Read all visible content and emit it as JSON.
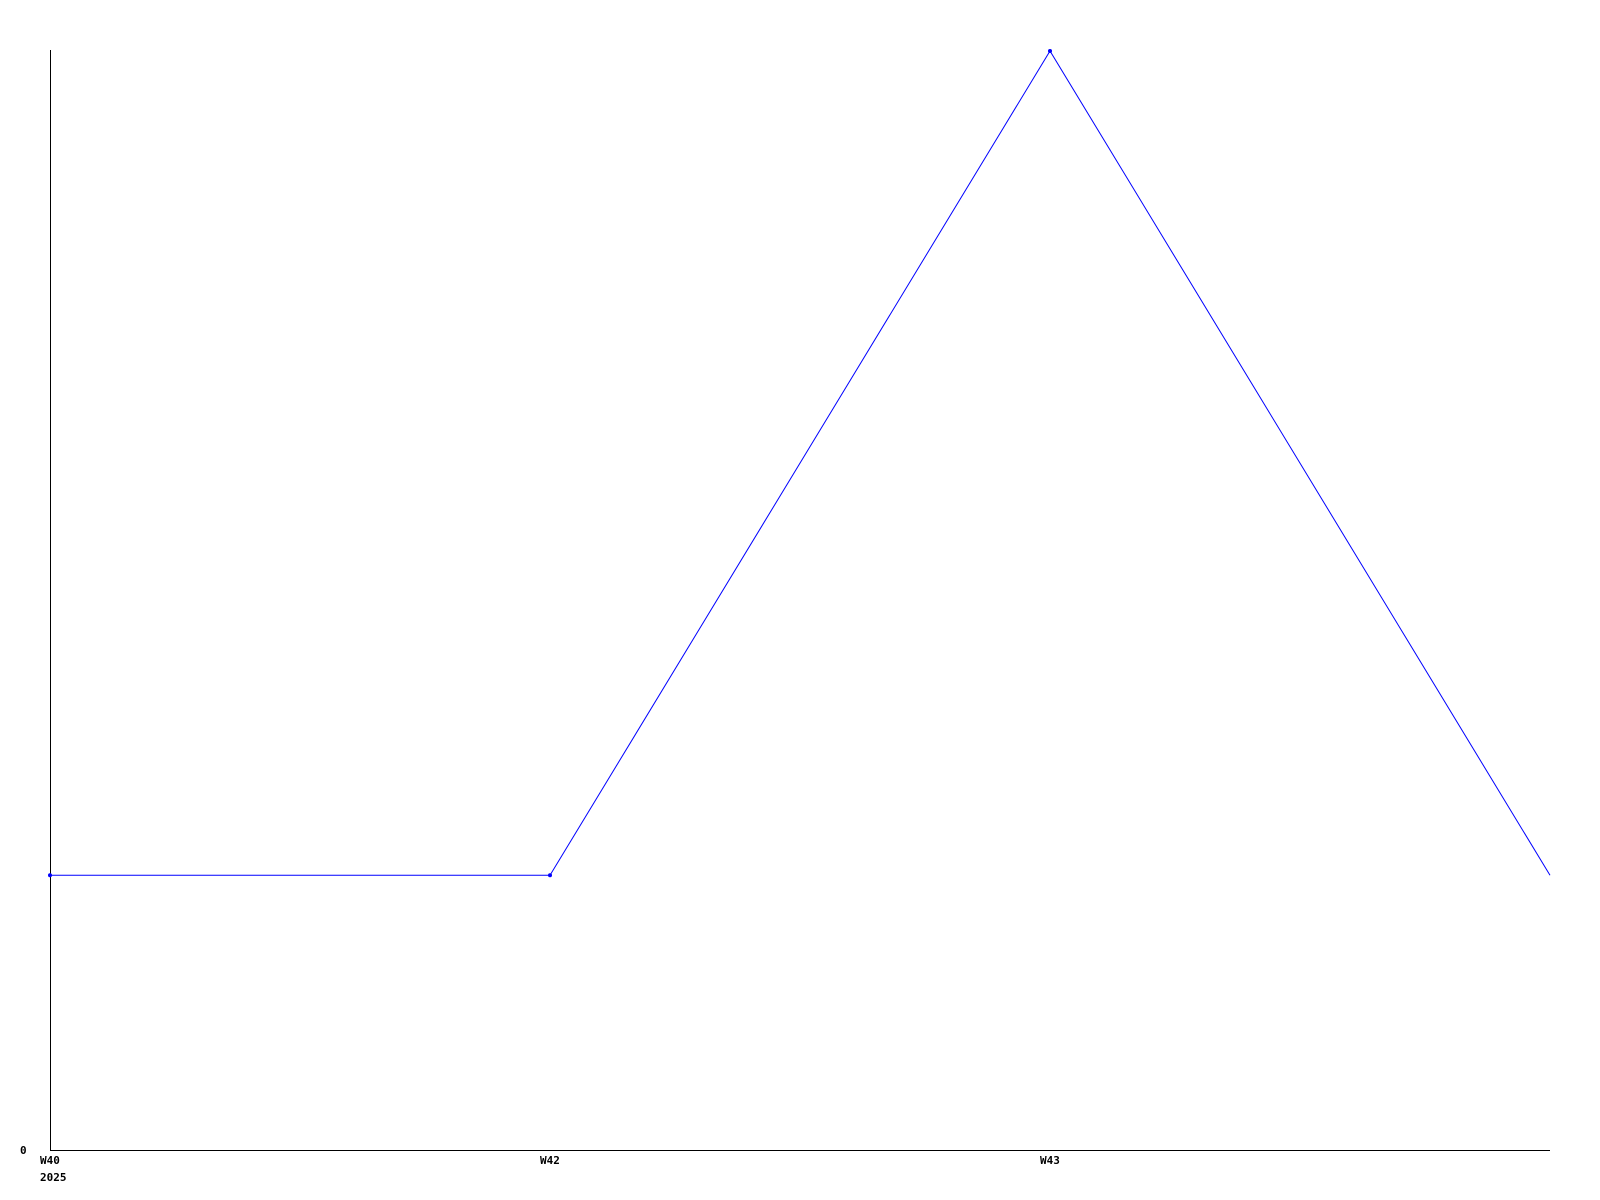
{
  "chart_data": {
    "type": "line",
    "title": "",
    "xlabel": "",
    "ylabel": "",
    "categories": [
      "W40",
      "W42",
      "W43",
      ""
    ],
    "x_sublabels": [
      "2025",
      "",
      "",
      ""
    ],
    "series": [
      {
        "values": [
          1,
          1,
          4,
          1
        ],
        "color": "#0000ff",
        "markers": [
          true,
          true,
          true,
          false
        ]
      }
    ],
    "y_tick_labels": [
      "0"
    ],
    "ylim": [
      0,
      4
    ],
    "grid": false,
    "legend": "none",
    "axis_color": "#000000"
  }
}
